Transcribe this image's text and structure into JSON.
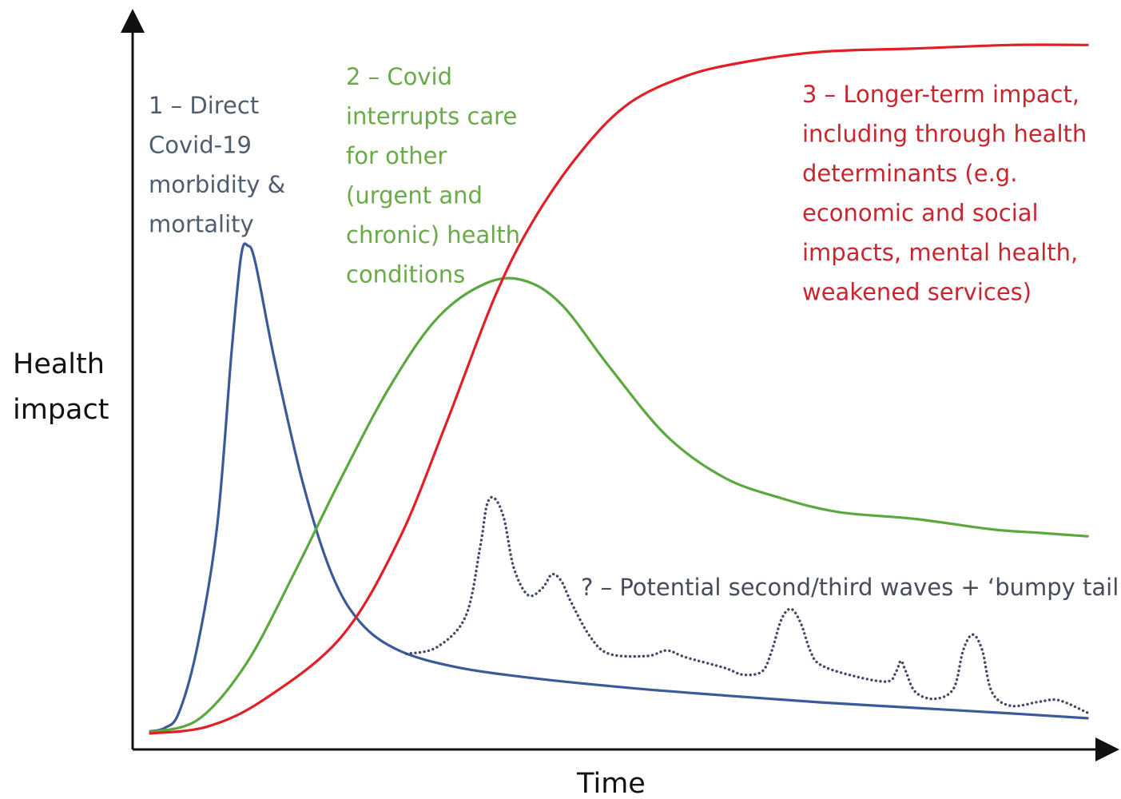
{
  "chart_data": {
    "type": "line",
    "xlabel": "Time",
    "ylabel": [
      "Health",
      "impact"
    ],
    "xlim": [
      0,
      1
    ],
    "ylim": [
      0,
      1
    ],
    "grid": false,
    "legend": "none",
    "series": [
      {
        "key": "direct",
        "color": "#3a5a98",
        "dashed": false,
        "points": [
          [
            0.0,
            0.003
          ],
          [
            0.015,
            0.008
          ],
          [
            0.03,
            0.03
          ],
          [
            0.05,
            0.13
          ],
          [
            0.07,
            0.3
          ],
          [
            0.085,
            0.55
          ],
          [
            0.095,
            0.69
          ],
          [
            0.102,
            0.705
          ],
          [
            0.11,
            0.68
          ],
          [
            0.13,
            0.54
          ],
          [
            0.16,
            0.36
          ],
          [
            0.19,
            0.23
          ],
          [
            0.22,
            0.16
          ],
          [
            0.26,
            0.12
          ],
          [
            0.32,
            0.096
          ],
          [
            0.4,
            0.08
          ],
          [
            0.5,
            0.066
          ],
          [
            0.6,
            0.055
          ],
          [
            0.7,
            0.045
          ],
          [
            0.8,
            0.037
          ],
          [
            0.9,
            0.029
          ],
          [
            0.98,
            0.022
          ]
        ]
      },
      {
        "key": "care",
        "color": "#5aa83e",
        "dashed": false,
        "points": [
          [
            0.0,
            0.002
          ],
          [
            0.05,
            0.02
          ],
          [
            0.1,
            0.1
          ],
          [
            0.15,
            0.23
          ],
          [
            0.2,
            0.37
          ],
          [
            0.25,
            0.5
          ],
          [
            0.3,
            0.6
          ],
          [
            0.35,
            0.65
          ],
          [
            0.39,
            0.655
          ],
          [
            0.43,
            0.62
          ],
          [
            0.48,
            0.53
          ],
          [
            0.54,
            0.43
          ],
          [
            0.6,
            0.37
          ],
          [
            0.66,
            0.34
          ],
          [
            0.72,
            0.32
          ],
          [
            0.8,
            0.31
          ],
          [
            0.88,
            0.295
          ],
          [
            0.93,
            0.29
          ],
          [
            0.98,
            0.285
          ]
        ]
      },
      {
        "key": "longterm",
        "color": "#e01f27",
        "dashed": false,
        "points": [
          [
            0.0,
            0.0
          ],
          [
            0.06,
            0.01
          ],
          [
            0.12,
            0.05
          ],
          [
            0.2,
            0.14
          ],
          [
            0.26,
            0.28
          ],
          [
            0.31,
            0.45
          ],
          [
            0.36,
            0.63
          ],
          [
            0.4,
            0.74
          ],
          [
            0.45,
            0.84
          ],
          [
            0.5,
            0.91
          ],
          [
            0.56,
            0.95
          ],
          [
            0.62,
            0.97
          ],
          [
            0.7,
            0.985
          ],
          [
            0.8,
            0.99
          ],
          [
            0.9,
            0.995
          ],
          [
            0.98,
            0.995
          ]
        ]
      },
      {
        "key": "waves",
        "color": "#444a66",
        "dashed": true,
        "points": [
          [
            0.268,
            0.115
          ],
          [
            0.3,
            0.125
          ],
          [
            0.33,
            0.17
          ],
          [
            0.345,
            0.27
          ],
          [
            0.352,
            0.33
          ],
          [
            0.36,
            0.34
          ],
          [
            0.37,
            0.31
          ],
          [
            0.38,
            0.24
          ],
          [
            0.395,
            0.2
          ],
          [
            0.41,
            0.21
          ],
          [
            0.42,
            0.23
          ],
          [
            0.43,
            0.22
          ],
          [
            0.44,
            0.19
          ],
          [
            0.46,
            0.14
          ],
          [
            0.48,
            0.115
          ],
          [
            0.52,
            0.112
          ],
          [
            0.54,
            0.12
          ],
          [
            0.56,
            0.11
          ],
          [
            0.6,
            0.095
          ],
          [
            0.62,
            0.085
          ],
          [
            0.64,
            0.09
          ],
          [
            0.65,
            0.12
          ],
          [
            0.66,
            0.165
          ],
          [
            0.67,
            0.18
          ],
          [
            0.68,
            0.16
          ],
          [
            0.69,
            0.12
          ],
          [
            0.7,
            0.1
          ],
          [
            0.73,
            0.085
          ],
          [
            0.77,
            0.075
          ],
          [
            0.78,
            0.09
          ],
          [
            0.785,
            0.105
          ],
          [
            0.79,
            0.09
          ],
          [
            0.8,
            0.06
          ],
          [
            0.82,
            0.05
          ],
          [
            0.84,
            0.065
          ],
          [
            0.85,
            0.12
          ],
          [
            0.86,
            0.143
          ],
          [
            0.87,
            0.12
          ],
          [
            0.88,
            0.06
          ],
          [
            0.9,
            0.04
          ],
          [
            0.93,
            0.046
          ],
          [
            0.95,
            0.048
          ],
          [
            0.98,
            0.03
          ]
        ]
      }
    ],
    "annotations": [
      {
        "key": "direct",
        "color": "#505d6e",
        "lines": [
          "1 – Direct",
          "Covid-19",
          "morbidity &",
          "mortality"
        ]
      },
      {
        "key": "care",
        "color": "#6aaa48",
        "lines": [
          "2 – Covid",
          "interrupts care",
          "for other",
          "(urgent and",
          "chronic) health",
          "conditions"
        ]
      },
      {
        "key": "longterm",
        "color": "#c8262e",
        "lines": [
          "3 – Longer-term impact,",
          "including through health",
          "determinants (e.g.",
          "economic and social",
          "impacts, mental health,",
          "weakened services)"
        ]
      },
      {
        "key": "waves",
        "color": "#474c5a",
        "lines": [
          "? – Potential second/third waves + ‘bumpy tail’"
        ]
      }
    ]
  }
}
